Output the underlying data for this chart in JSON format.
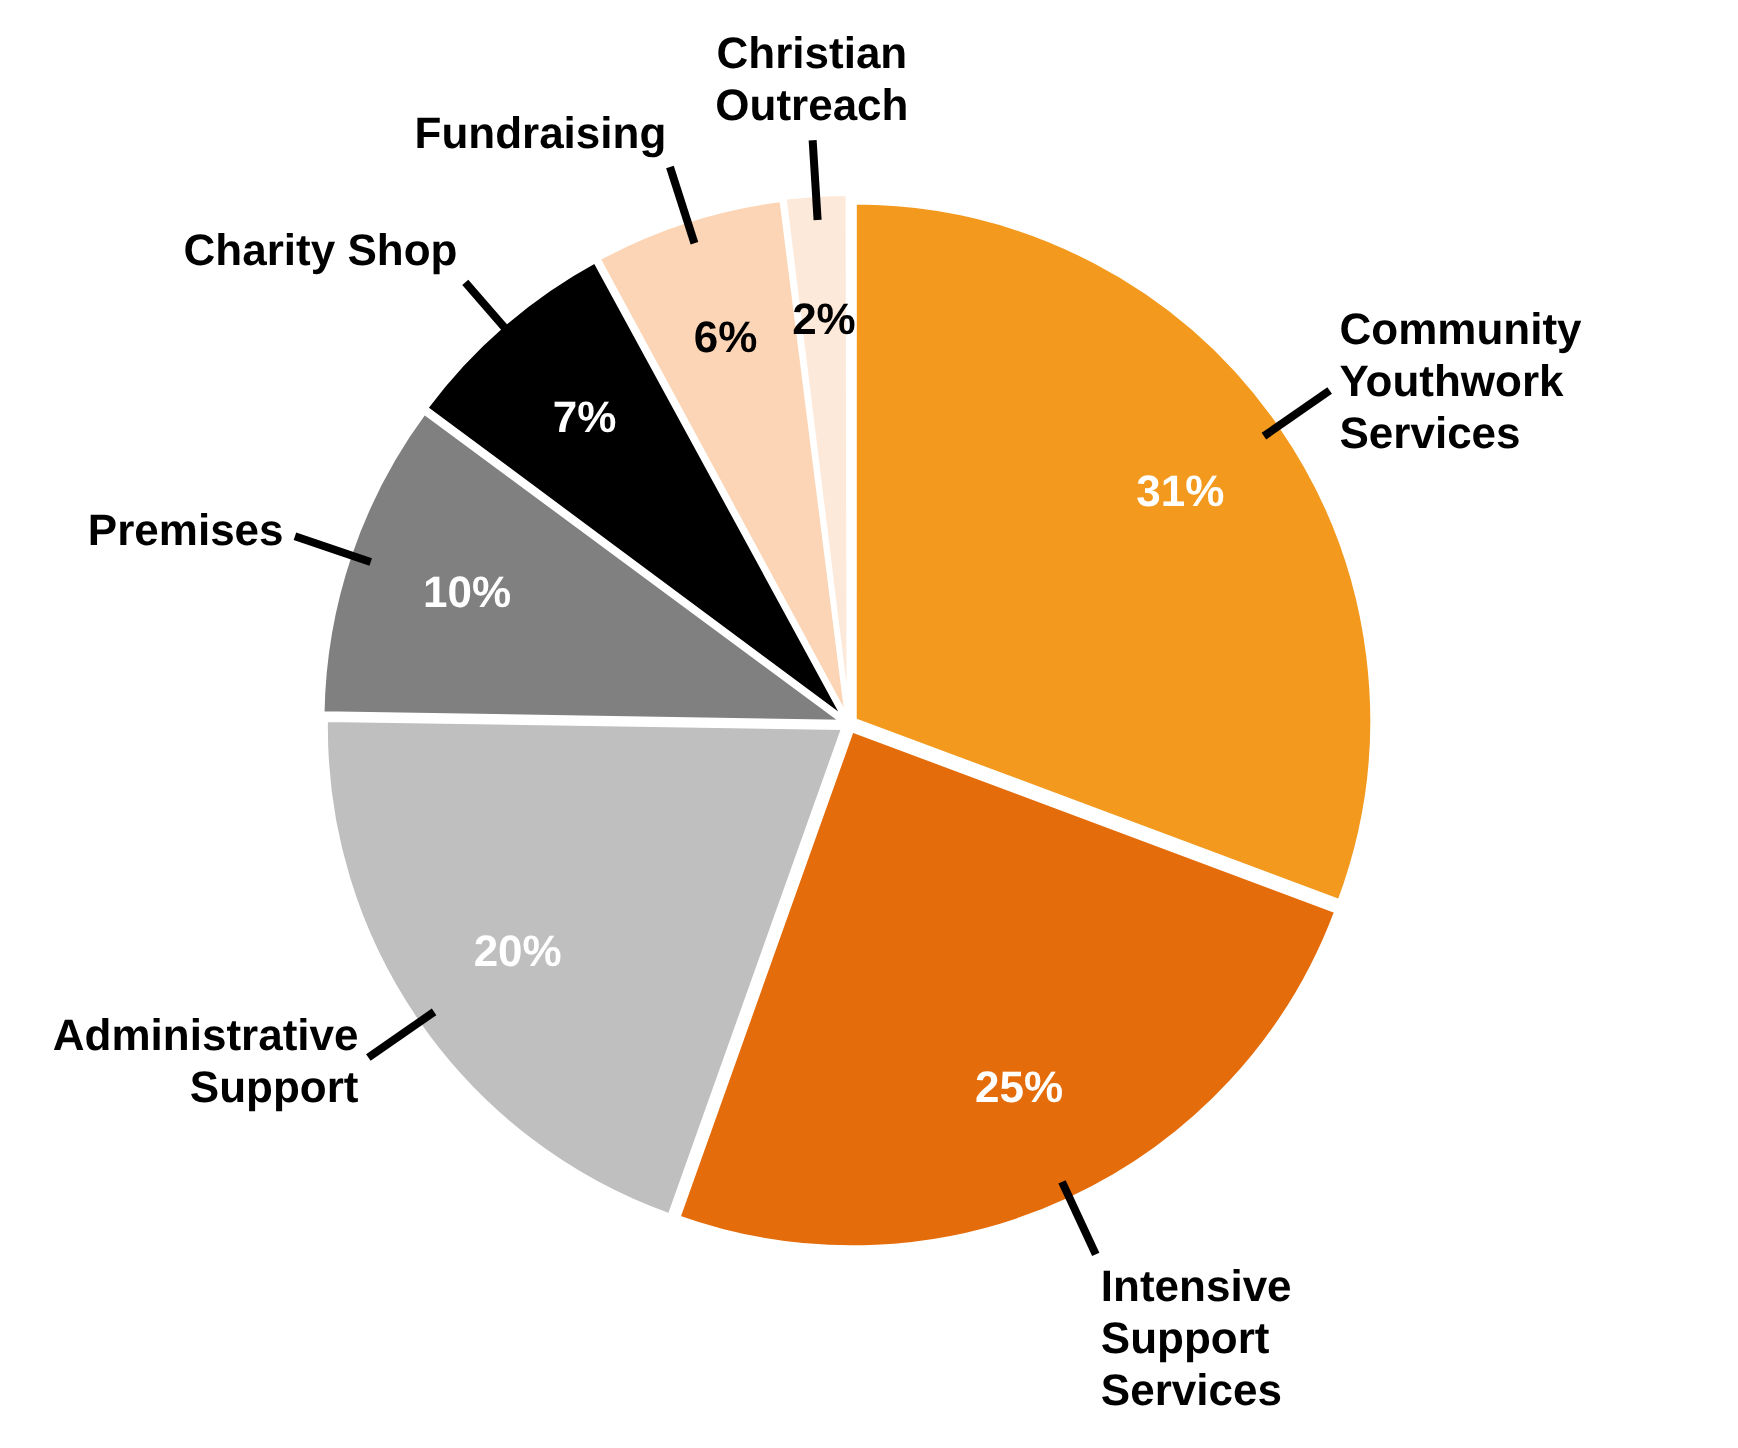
{
  "chart_data": {
    "type": "pie",
    "categories": [
      "Community Youthwork Services",
      "Intensive Support Services",
      "Administrative Support",
      "Premises",
      "Charity Shop",
      "Fundraising",
      "Christian Outreach"
    ],
    "values": [
      31,
      25,
      20,
      10,
      7,
      6,
      2
    ],
    "colors": [
      "#f39a1e",
      "#e46c0a",
      "#bfbfbf",
      "#808080",
      "#000000",
      "#fbd5b5",
      "#fde9d9"
    ],
    "value_labels": [
      "31%",
      "25%",
      "20%",
      "10%",
      "7%",
      "6%",
      "2%"
    ],
    "legend": false
  }
}
